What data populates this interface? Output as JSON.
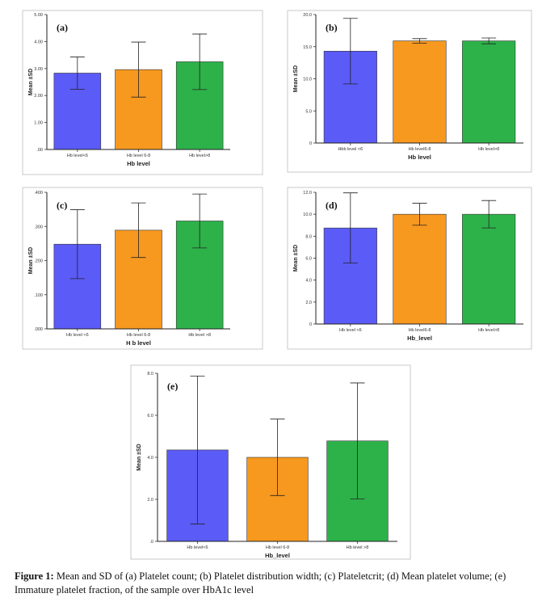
{
  "figure": {
    "caption_label": "Figure 1:",
    "caption_text": " Mean and SD of (a) Platelet count; (b) Platelet distribution width; (c) Plateletcrit; (d) Mean platelet volume; (e) Immature platelet fraction, of the sample over HbA1c level"
  },
  "colors": {
    "blue": "#5b5bf7",
    "orange": "#f7981f",
    "green": "#2db24a"
  },
  "chart_data": [
    {
      "type": "bar",
      "panel_label": "(a)",
      "title": "",
      "categories": [
        "Hb level<6",
        "Hb level 6-8",
        "Hb level>8"
      ],
      "values": [
        2.83,
        2.96,
        3.25
      ],
      "sd": [
        0.6,
        1.02,
        1.03
      ],
      "ylim": [
        0,
        5
      ],
      "yticks": [
        "5.00",
        "4.00",
        "3.00",
        "2.00",
        "1.00",
        ".00"
      ],
      "ylabel": "Mean ±SD",
      "xlabel": "Hb level",
      "grid": false
    },
    {
      "type": "bar",
      "panel_label": "(b)",
      "title": "",
      "categories": [
        "Hbb level <6",
        "Hb level6-8",
        "Hb level>8"
      ],
      "values": [
        14.3,
        15.9,
        15.9
      ],
      "sd": [
        5.1,
        0.35,
        0.45
      ],
      "ylim": [
        0,
        20
      ],
      "yticks": [
        "20.0",
        "15.0",
        "10.0",
        "5.0",
        "0"
      ],
      "ylabel": "Mean ±SD",
      "xlabel": "Hb level",
      "grid": false
    },
    {
      "type": "bar",
      "panel_label": "(c)",
      "title": "",
      "categories": [
        "Hb level <6",
        "Hb level 6-8",
        "Hb level >8"
      ],
      "values": [
        0.248,
        0.289,
        0.316
      ],
      "sd": [
        0.101,
        0.08,
        0.079
      ],
      "ylim": [
        0,
        0.4
      ],
      "yticks": [
        ".400",
        ".300",
        ".200",
        ".100",
        ".000"
      ],
      "ylabel": "Mean ±SD",
      "xlabel": "H b level",
      "grid": false
    },
    {
      "type": "bar",
      "panel_label": "(d)",
      "title": "",
      "categories": [
        "Hb level <6",
        "Hb level6-8",
        "Hb level>8"
      ],
      "values": [
        8.75,
        10.0,
        10.0
      ],
      "sd": [
        3.2,
        1.0,
        1.25
      ],
      "ylim": [
        0,
        12
      ],
      "yticks": [
        "12.0",
        "10.0",
        "8.0",
        "6.0",
        "4.0",
        "2.0",
        "0"
      ],
      "ylabel": "Mean ±SD",
      "xlabel": "Hb_level",
      "grid": false
    },
    {
      "type": "bar",
      "panel_label": "(e)",
      "title": "",
      "categories": [
        "Hb level<6",
        "Hb level 6-8",
        "Hb level >8"
      ],
      "values": [
        4.35,
        4.0,
        4.78
      ],
      "sd": [
        3.52,
        1.82,
        2.76
      ],
      "ylim": [
        0,
        8
      ],
      "yticks": [
        "8.0",
        "6.0",
        "4.0",
        "2.0",
        ".0"
      ],
      "ylabel": "Mean ±SD",
      "xlabel": "Hb_level",
      "grid": false
    }
  ]
}
